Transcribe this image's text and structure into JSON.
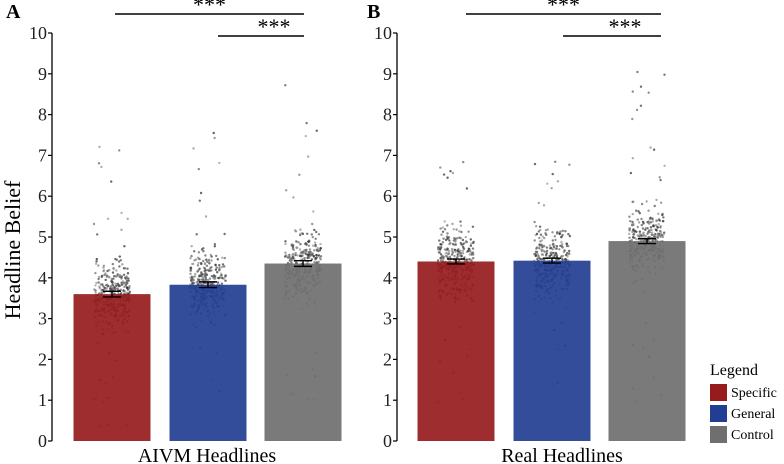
{
  "figure": {
    "ylabel": "Headline Belief",
    "legend": {
      "title": "Legend",
      "placement": "right",
      "items": [
        {
          "label": "Specific",
          "color": "#951B1C"
        },
        {
          "label": "General",
          "color": "#223E92"
        },
        {
          "label": "Control",
          "color": "#6F6F6F"
        }
      ]
    }
  },
  "chart_data": [
    {
      "type": "bar",
      "panel_label": "A",
      "xlabel": "AIVM Headlines",
      "ylabel": "Headline Belief",
      "ylim": [
        0,
        10
      ],
      "yticks": [
        "0",
        "1",
        "2",
        "3",
        "4",
        "5",
        "6",
        "7",
        "8",
        "9",
        "10"
      ],
      "grid": false,
      "categories": [
        "Specific",
        "General",
        "Control"
      ],
      "values": [
        3.6,
        3.83,
        4.35
      ],
      "error": [
        0.07,
        0.07,
        0.07
      ],
      "colors": [
        "#951B1C",
        "#223E92",
        "#6F6F6F"
      ],
      "jitter": {
        "note_hidden": true,
        "ranges": [
          [
            0.2,
            7.3
          ],
          [
            0.4,
            7.8
          ],
          [
            0.4,
            9.5
          ]
        ],
        "counts": [
          360,
          330,
          300
        ]
      },
      "significance": [
        {
          "from": "Specific",
          "to": "Control",
          "label": "***"
        },
        {
          "from": "General",
          "to": "Control",
          "label": "***"
        }
      ]
    },
    {
      "type": "bar",
      "panel_label": "B",
      "xlabel": "Real Headlines",
      "ylabel": "",
      "ylim": [
        0,
        10
      ],
      "yticks": [
        "0",
        "1",
        "2",
        "3",
        "4",
        "5",
        "6",
        "7",
        "8",
        "9",
        "10"
      ],
      "grid": false,
      "categories": [
        "Specific",
        "General",
        "Control"
      ],
      "values": [
        4.4,
        4.42,
        4.9
      ],
      "error": [
        0.06,
        0.06,
        0.06
      ],
      "colors": [
        "#951B1C",
        "#223E92",
        "#6F6F6F"
      ],
      "jitter": {
        "note_hidden": true,
        "ranges": [
          [
            0.8,
            7.2
          ],
          [
            1.0,
            7.0
          ],
          [
            0.9,
            9.2
          ]
        ],
        "counts": [
          360,
          330,
          300
        ]
      },
      "significance": [
        {
          "from": "Specific",
          "to": "Control",
          "label": "***"
        },
        {
          "from": "General",
          "to": "Control",
          "label": "***"
        }
      ]
    }
  ]
}
